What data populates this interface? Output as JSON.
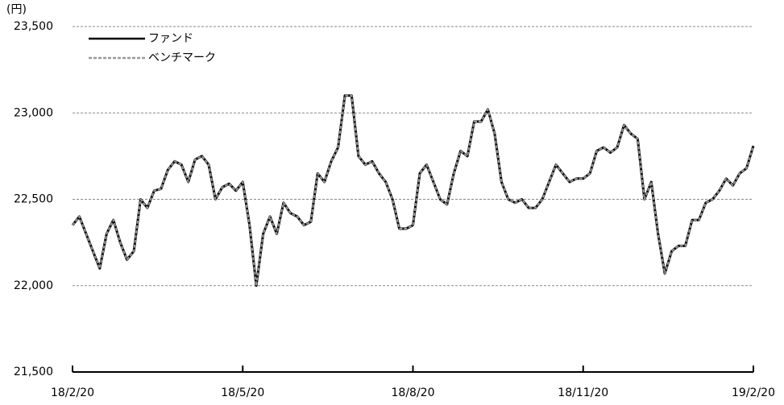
{
  "chart_data": {
    "type": "line",
    "y_unit": "(円)",
    "categories": [
      "18/2/20",
      null,
      null,
      null,
      null,
      null,
      null,
      null,
      null,
      null,
      null,
      null,
      null,
      null,
      null,
      null,
      null,
      null,
      null,
      null,
      null,
      null,
      null,
      null,
      null,
      "18/5/20",
      null,
      null,
      null,
      null,
      null,
      null,
      null,
      null,
      null,
      null,
      null,
      null,
      null,
      null,
      null,
      null,
      null,
      null,
      null,
      null,
      null,
      null,
      null,
      null,
      "18/8/20",
      null,
      null,
      null,
      null,
      null,
      null,
      null,
      null,
      null,
      null,
      null,
      null,
      null,
      null,
      null,
      null,
      null,
      null,
      null,
      null,
      null,
      null,
      null,
      null,
      "18/11/20",
      null,
      null,
      null,
      null,
      null,
      null,
      null,
      null,
      null,
      null,
      null,
      null,
      null,
      null,
      null,
      null,
      null,
      null,
      null,
      null,
      null,
      null,
      null,
      null,
      "19/2/20"
    ],
    "series": [
      {
        "name": "ファンド",
        "color": "#000000",
        "dashed": false,
        "values": [
          22350,
          22400,
          22300,
          22200,
          22100,
          22300,
          22380,
          22250,
          22150,
          22200,
          22500,
          22450,
          22550,
          22560,
          22670,
          22720,
          22700,
          22600,
          22730,
          22750,
          22700,
          22500,
          22570,
          22590,
          22550,
          22600,
          22350,
          22000,
          22300,
          22400,
          22300,
          22480,
          22420,
          22400,
          22350,
          22370,
          22650,
          22600,
          22720,
          22800,
          23100,
          23100,
          22750,
          22700,
          22720,
          22650,
          22600,
          22500,
          22330,
          22330,
          22350,
          22650,
          22700,
          22600,
          22500,
          22470,
          22650,
          22780,
          22750,
          22950,
          22950,
          23020,
          22880,
          22600,
          22500,
          22480,
          22500,
          22450,
          22450,
          22500,
          22600,
          22700,
          22650,
          22600,
          22620,
          22620,
          22650,
          22780,
          22800,
          22770,
          22800,
          22930,
          22880,
          22850,
          22500,
          22600,
          22300,
          22070,
          22200,
          22230,
          22230,
          22380,
          22380,
          22480,
          22500,
          22550,
          22620,
          22580,
          22650,
          22680,
          22810
        ]
      },
      {
        "name": "ベンチマーク",
        "color": "#999999",
        "dashed": true,
        "values": [
          22350,
          22400,
          22300,
          22200,
          22100,
          22300,
          22380,
          22250,
          22150,
          22200,
          22500,
          22450,
          22550,
          22560,
          22670,
          22720,
          22700,
          22600,
          22730,
          22750,
          22700,
          22500,
          22570,
          22590,
          22550,
          22600,
          22350,
          22000,
          22300,
          22400,
          22300,
          22480,
          22420,
          22400,
          22350,
          22370,
          22650,
          22600,
          22720,
          22800,
          23100,
          23100,
          22750,
          22700,
          22720,
          22650,
          22600,
          22500,
          22330,
          22330,
          22350,
          22650,
          22700,
          22600,
          22500,
          22470,
          22650,
          22780,
          22750,
          22950,
          22950,
          23020,
          22880,
          22600,
          22500,
          22480,
          22500,
          22450,
          22450,
          22500,
          22600,
          22700,
          22650,
          22600,
          22620,
          22620,
          22650,
          22780,
          22800,
          22770,
          22800,
          22930,
          22880,
          22850,
          22500,
          22600,
          22300,
          22070,
          22200,
          22230,
          22230,
          22380,
          22380,
          22480,
          22500,
          22550,
          22620,
          22580,
          22650,
          22680,
          22810
        ]
      }
    ],
    "ylim": [
      21500,
      23500
    ],
    "yticks": [
      {
        "value": 21500,
        "label": "21,500"
      },
      {
        "value": 22000,
        "label": "22,000"
      },
      {
        "value": 22500,
        "label": "22,500"
      },
      {
        "value": 23000,
        "label": "23,000"
      },
      {
        "value": 23500,
        "label": "23,500"
      }
    ],
    "grid": true,
    "legend": "top-left"
  }
}
